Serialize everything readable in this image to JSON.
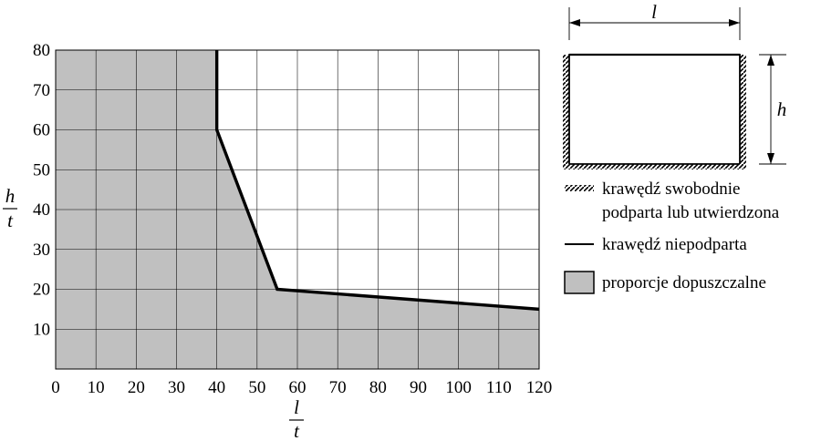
{
  "chart_data": {
    "type": "area",
    "title": "",
    "xlabel": {
      "numerator": "l",
      "denominator": "t"
    },
    "ylabel": {
      "numerator": "h",
      "denominator": "t"
    },
    "xlim": [
      0,
      120
    ],
    "ylim": [
      0,
      80
    ],
    "x_ticks": [
      0,
      10,
      20,
      30,
      40,
      50,
      60,
      70,
      80,
      90,
      100,
      110,
      120
    ],
    "y_ticks": [
      10,
      20,
      30,
      40,
      50,
      60,
      70,
      80
    ],
    "grid": true,
    "boundary": [
      {
        "x": 40,
        "y": 80
      },
      {
        "x": 40,
        "y": 60
      },
      {
        "x": 55,
        "y": 20
      },
      {
        "x": 120,
        "y": 15
      }
    ],
    "fill_color": "#c0c0c0",
    "line_color": "#000000",
    "legend_position": "right"
  },
  "schematic": {
    "width_label": "l",
    "height_label": "h"
  },
  "legend": {
    "supported_line1": "krawędź swobodnie",
    "supported_line2": "podparta lub utwierdzona",
    "unsupported": "krawędź niepodparta",
    "allowed": "proporcje dopuszczalne"
  }
}
